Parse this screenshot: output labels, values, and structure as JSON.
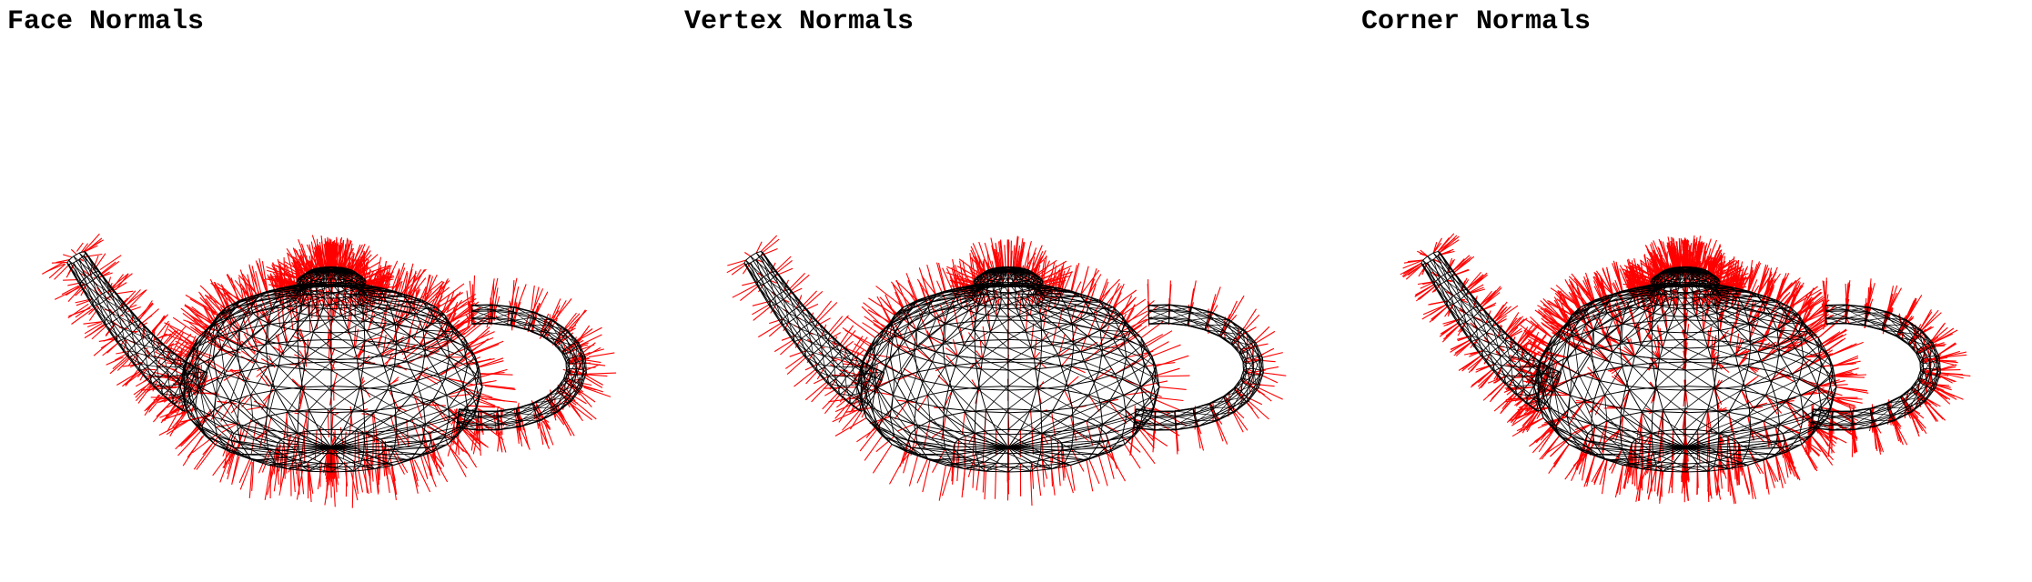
{
  "panels": [
    {
      "id": "face",
      "title": "Face Normals",
      "normal_mode": "face"
    },
    {
      "id": "vertex",
      "title": "Vertex Normals",
      "normal_mode": "vertex"
    },
    {
      "id": "corner",
      "title": "Corner Normals",
      "normal_mode": "corner"
    }
  ],
  "colors": {
    "background": "#ffffff",
    "wireframe": "#000000",
    "normals": "#ff0000",
    "title": "#000000"
  }
}
